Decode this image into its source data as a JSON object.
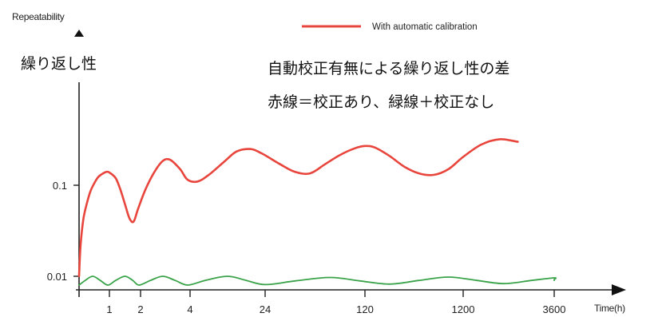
{
  "chart_data": {
    "type": "line",
    "ylabel": "Repeatability",
    "xlabel": "Time(h)",
    "y_scale": "log",
    "ylim": [
      0.005,
      0.5
    ],
    "y_ticks": [
      {
        "value": 0.1,
        "label": "0.1"
      },
      {
        "value": 0.01,
        "label": "0.01"
      }
    ],
    "x_ticks": [
      "1",
      "2",
      "4",
      "24",
      "120",
      "1200",
      "3600"
    ],
    "legend": {
      "placement": "top-right",
      "entries": [
        "With automatic calibration"
      ]
    },
    "grid": false,
    "series": [
      {
        "name": "With automatic calibration",
        "color": "#e8453c",
        "points": [
          [
            0.0,
            0.01
          ],
          [
            0.05,
            0.022
          ],
          [
            0.14,
            0.042
          ],
          [
            0.25,
            0.062
          ],
          [
            0.37,
            0.085
          ],
          [
            0.5,
            0.105
          ],
          [
            0.62,
            0.122
          ],
          [
            0.76,
            0.133
          ],
          [
            0.9,
            0.14
          ],
          [
            1.0,
            0.138
          ],
          [
            1.2,
            0.12
          ],
          [
            1.35,
            0.09
          ],
          [
            1.5,
            0.062
          ],
          [
            1.65,
            0.043
          ],
          [
            1.78,
            0.04
          ],
          [
            1.92,
            0.055
          ],
          [
            2.1,
            0.09
          ],
          [
            2.28,
            0.14
          ],
          [
            2.45,
            0.185
          ],
          [
            2.6,
            0.19
          ],
          [
            2.8,
            0.15
          ],
          [
            2.95,
            0.115
          ],
          [
            3.1,
            0.11
          ],
          [
            3.25,
            0.13
          ],
          [
            3.45,
            0.18
          ],
          [
            3.62,
            0.235
          ],
          [
            3.8,
            0.25
          ],
          [
            3.95,
            0.225
          ],
          [
            4.15,
            0.17
          ],
          [
            4.3,
            0.14
          ],
          [
            4.45,
            0.135
          ],
          [
            4.6,
            0.17
          ],
          [
            4.75,
            0.215
          ],
          [
            4.9,
            0.255
          ],
          [
            5.0,
            0.27
          ],
          [
            5.1,
            0.26
          ],
          [
            5.25,
            0.21
          ],
          [
            5.4,
            0.16
          ],
          [
            5.55,
            0.135
          ],
          [
            5.7,
            0.13
          ],
          [
            5.85,
            0.15
          ],
          [
            6.0,
            0.205
          ],
          [
            6.2,
            0.28
          ],
          [
            6.4,
            0.32
          ],
          [
            6.6,
            0.3
          ]
        ]
      },
      {
        "name": "",
        "color": "#3aa34a",
        "points": [
          [
            0.0,
            0.008
          ],
          [
            0.2,
            0.009
          ],
          [
            0.45,
            0.01
          ],
          [
            0.7,
            0.009
          ],
          [
            0.95,
            0.008
          ],
          [
            1.2,
            0.009
          ],
          [
            1.5,
            0.01
          ],
          [
            1.75,
            0.009
          ],
          [
            1.95,
            0.008
          ],
          [
            2.2,
            0.009
          ],
          [
            2.45,
            0.01
          ],
          [
            2.7,
            0.009
          ],
          [
            2.95,
            0.008
          ],
          [
            3.2,
            0.009
          ],
          [
            3.5,
            0.01
          ],
          [
            3.75,
            0.009
          ],
          [
            4.0,
            0.0081
          ],
          [
            4.3,
            0.0089
          ],
          [
            4.65,
            0.0097
          ],
          [
            4.95,
            0.0089
          ],
          [
            5.25,
            0.0082
          ],
          [
            5.55,
            0.009
          ],
          [
            5.85,
            0.0098
          ],
          [
            6.15,
            0.009
          ],
          [
            6.45,
            0.0083
          ],
          [
            6.75,
            0.009
          ],
          [
            7.0,
            0.0096
          ],
          [
            7.25,
            0.0092
          ],
          [
            7.5,
            0.009
          ]
        ]
      }
    ]
  },
  "annotations": {
    "left_label": "繰り返し性",
    "title_line1": "自動校正有無による繰り返し性の差",
    "title_line2": "赤線＝校正あり、緑線＋校正なし"
  }
}
